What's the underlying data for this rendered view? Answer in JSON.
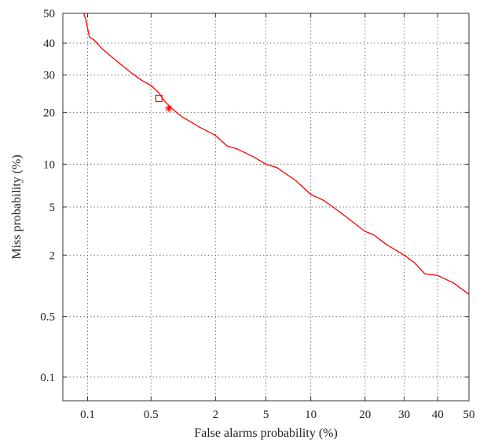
{
  "chart_data": {
    "type": "line",
    "title": "",
    "xlabel": "False alarms probability (%)",
    "ylabel": "Miss probability (%)",
    "x_scale": "normal-deviate (probit)",
    "y_scale": "normal-deviate (probit)",
    "xlim": [
      0.05,
      50
    ],
    "ylim": [
      0.05,
      50
    ],
    "x_ticks": [
      0.1,
      0.5,
      2,
      5,
      10,
      20,
      30,
      40,
      50
    ],
    "x_tick_labels": [
      "0.1",
      "0.5",
      "2",
      "5",
      "10",
      "20",
      "30",
      "40",
      "50"
    ],
    "y_ticks": [
      0.1,
      0.5,
      2,
      5,
      10,
      20,
      30,
      40,
      50
    ],
    "y_tick_labels": [
      "0.1",
      "0.5",
      "2",
      "5",
      "10",
      "20",
      "30",
      "40",
      "50"
    ],
    "grid": true,
    "series": [
      {
        "color": "#ff0000",
        "points": [
          [
            0.09,
            50
          ],
          [
            0.095,
            48
          ],
          [
            0.1,
            45
          ],
          [
            0.105,
            42
          ],
          [
            0.12,
            41
          ],
          [
            0.15,
            38
          ],
          [
            0.2,
            35
          ],
          [
            0.3,
            31
          ],
          [
            0.4,
            28.5
          ],
          [
            0.5,
            27
          ],
          [
            0.6,
            25
          ],
          [
            0.65,
            23.5
          ],
          [
            0.7,
            22.5
          ],
          [
            0.8,
            21
          ],
          [
            1.0,
            19
          ],
          [
            1.5,
            16.5
          ],
          [
            2.0,
            15
          ],
          [
            2.5,
            13
          ],
          [
            3.0,
            12.5
          ],
          [
            4.0,
            11.2
          ],
          [
            5.0,
            10
          ],
          [
            6.0,
            9.5
          ],
          [
            8.0,
            7.8
          ],
          [
            10.0,
            6.2
          ],
          [
            12.0,
            5.6
          ],
          [
            15.0,
            4.5
          ],
          [
            20.0,
            3.2
          ],
          [
            22.0,
            3.0
          ],
          [
            25.0,
            2.5
          ],
          [
            30.0,
            2.0
          ],
          [
            33.0,
            1.7
          ],
          [
            36.0,
            1.35
          ],
          [
            40.0,
            1.3
          ],
          [
            45.0,
            1.1
          ],
          [
            50.0,
            0.85
          ]
        ]
      }
    ],
    "markers": [
      {
        "symbol": "square",
        "x": 0.6,
        "y": 23.5,
        "color": "#ff0000"
      },
      {
        "symbol": "star",
        "x": 0.75,
        "y": 21.0,
        "color": "#ff0000"
      }
    ]
  }
}
